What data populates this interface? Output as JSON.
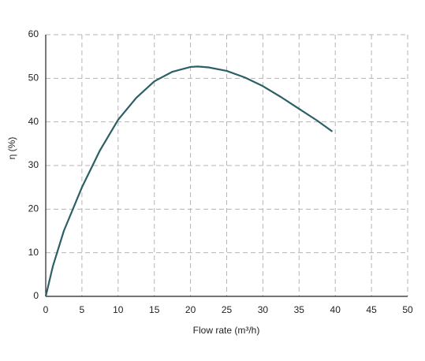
{
  "chart_data": {
    "type": "line",
    "xlabel": "Flow rate (m³/h)",
    "ylabel": "η (%)",
    "x": [
      0,
      1,
      2.5,
      5,
      7.5,
      10,
      12.5,
      15,
      17.5,
      20,
      21,
      22.5,
      25,
      27.5,
      30,
      32.5,
      35,
      37.5,
      39.6
    ],
    "series": [
      {
        "color": "#2d5f67",
        "values": [
          0,
          7,
          15,
          25,
          33.5,
          40.5,
          45.5,
          49.3,
          51.5,
          52.6,
          52.7,
          52.5,
          51.7,
          50.2,
          48.2,
          45.7,
          43,
          40.3,
          37.8
        ]
      }
    ],
    "xlim": [
      0,
      50
    ],
    "xticks": [
      0,
      5,
      10,
      15,
      20,
      25,
      30,
      35,
      40,
      45,
      50
    ],
    "ylim": [
      0,
      60
    ],
    "yticks": [
      0,
      10,
      20,
      30,
      40,
      50,
      60
    ],
    "grid": true
  }
}
